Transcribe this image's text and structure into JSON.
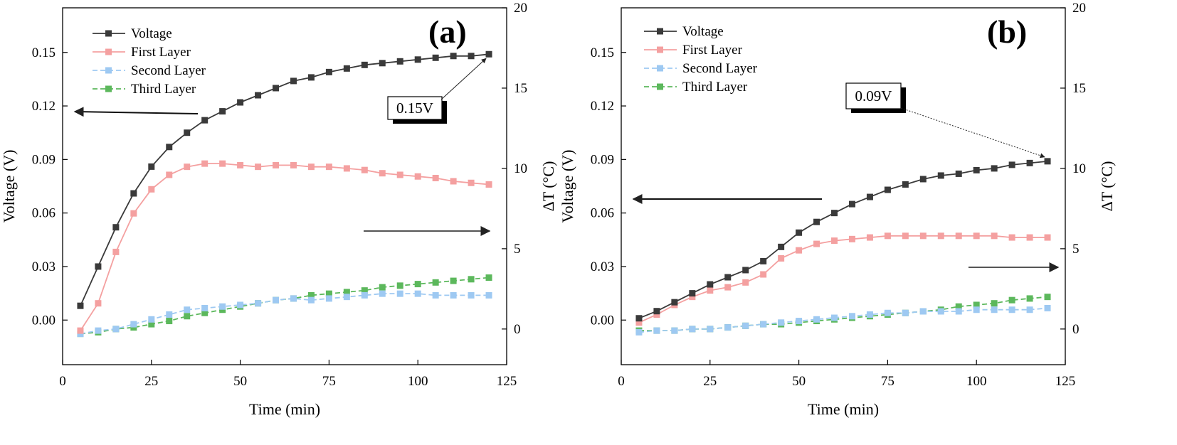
{
  "colors": {
    "voltage": "#3a3a3a",
    "first_layer": "#f4a0a0",
    "second_layer": "#9ec9f2",
    "third_layer": "#5cb85c"
  },
  "chart_data": [
    {
      "type": "line",
      "panel_label": "(a)",
      "xlabel": "Time (min)",
      "ylabel_left": "Voltage (V)",
      "ylabel_right": "ΔT (°C)",
      "xlim": [
        0,
        125
      ],
      "ylim_left": [
        -0.025,
        0.175
      ],
      "ylim_right": [
        -2.22,
        20
      ],
      "x_ticks": [
        "0",
        "25",
        "50",
        "75",
        "100",
        "125"
      ],
      "y_left_ticks": [
        "0.00",
        "0.03",
        "0.06",
        "0.09",
        "0.12",
        "0.15"
      ],
      "y_right_ticks": [
        "0",
        "5",
        "10",
        "15",
        "20"
      ],
      "legend_position": "top-left",
      "x": [
        5,
        10,
        15,
        20,
        25,
        30,
        35,
        40,
        45,
        50,
        55,
        60,
        65,
        70,
        75,
        80,
        85,
        90,
        95,
        100,
        105,
        110,
        115,
        120
      ],
      "series": [
        {
          "name": "Voltage",
          "axis": "left",
          "style": "solid",
          "color": "#3a3a3a",
          "values": [
            0.008,
            0.03,
            0.052,
            0.071,
            0.086,
            0.097,
            0.105,
            0.112,
            0.117,
            0.122,
            0.126,
            0.13,
            0.134,
            0.136,
            0.139,
            0.141,
            0.143,
            0.144,
            0.145,
            0.146,
            0.147,
            0.148,
            0.148,
            0.149
          ]
        },
        {
          "name": "First Layer",
          "axis": "right",
          "style": "solid",
          "color": "#f4a0a0",
          "values": [
            -0.1,
            1.6,
            4.8,
            7.2,
            8.7,
            9.6,
            10.1,
            10.3,
            10.3,
            10.2,
            10.1,
            10.2,
            10.2,
            10.1,
            10.1,
            10.0,
            9.9,
            9.7,
            9.6,
            9.5,
            9.4,
            9.2,
            9.1,
            9.0
          ]
        },
        {
          "name": "Second Layer",
          "axis": "right",
          "style": "dashed",
          "color": "#9ec9f2",
          "values": [
            -0.3,
            -0.1,
            0.0,
            0.3,
            0.6,
            0.9,
            1.2,
            1.3,
            1.4,
            1.5,
            1.6,
            1.8,
            1.9,
            1.8,
            1.9,
            2.0,
            2.1,
            2.2,
            2.2,
            2.2,
            2.1,
            2.1,
            2.1,
            2.1
          ]
        },
        {
          "name": "Third Layer",
          "axis": "right",
          "style": "dashed",
          "color": "#5cb85c",
          "values": [
            -0.3,
            -0.2,
            0.0,
            0.1,
            0.3,
            0.5,
            0.8,
            1.0,
            1.2,
            1.4,
            1.6,
            1.8,
            1.9,
            2.1,
            2.2,
            2.3,
            2.4,
            2.6,
            2.7,
            2.8,
            2.9,
            3.0,
            3.1,
            3.2
          ]
        }
      ],
      "annotation": {
        "text": "0.15V",
        "x": 120,
        "y": 0.149
      }
    },
    {
      "type": "line",
      "panel_label": "(b)",
      "xlabel": "Time (min)",
      "ylabel_left": "Voltage (V)",
      "ylabel_right": "ΔT (°C)",
      "xlim": [
        0,
        125
      ],
      "ylim_left": [
        -0.025,
        0.175
      ],
      "ylim_right": [
        -2.22,
        20
      ],
      "x_ticks": [
        "0",
        "25",
        "50",
        "75",
        "100",
        "125"
      ],
      "y_left_ticks": [
        "0.00",
        "0.03",
        "0.06",
        "0.09",
        "0.12",
        "0.15"
      ],
      "y_right_ticks": [
        "0",
        "5",
        "10",
        "15",
        "20"
      ],
      "legend_position": "top-left",
      "x": [
        5,
        10,
        15,
        20,
        25,
        30,
        35,
        40,
        45,
        50,
        55,
        60,
        65,
        70,
        75,
        80,
        85,
        90,
        95,
        100,
        105,
        110,
        115,
        120
      ],
      "series": [
        {
          "name": "Voltage",
          "axis": "left",
          "style": "solid",
          "color": "#3a3a3a",
          "values": [
            0.001,
            0.005,
            0.01,
            0.015,
            0.02,
            0.024,
            0.028,
            0.033,
            0.041,
            0.049,
            0.055,
            0.06,
            0.065,
            0.069,
            0.073,
            0.076,
            0.079,
            0.081,
            0.082,
            0.084,
            0.085,
            0.087,
            0.088,
            0.089
          ]
        },
        {
          "name": "First Layer",
          "axis": "right",
          "style": "solid",
          "color": "#f4a0a0",
          "values": [
            0.4,
            0.9,
            1.5,
            2.0,
            2.4,
            2.6,
            2.9,
            3.4,
            4.4,
            4.9,
            5.3,
            5.5,
            5.6,
            5.7,
            5.8,
            5.8,
            5.8,
            5.8,
            5.8,
            5.8,
            5.8,
            5.7,
            5.7,
            5.7
          ]
        },
        {
          "name": "Second Layer",
          "axis": "right",
          "style": "dashed",
          "color": "#9ec9f2",
          "values": [
            -0.2,
            -0.1,
            -0.1,
            0.0,
            0.0,
            0.1,
            0.2,
            0.3,
            0.4,
            0.5,
            0.6,
            0.7,
            0.8,
            0.9,
            1.0,
            1.0,
            1.1,
            1.1,
            1.1,
            1.2,
            1.2,
            1.2,
            1.2,
            1.3
          ]
        },
        {
          "name": "Third Layer",
          "axis": "right",
          "style": "dashed",
          "color": "#5cb85c",
          "values": [
            -0.1,
            -0.1,
            -0.1,
            0.0,
            0.0,
            0.1,
            0.2,
            0.3,
            0.3,
            0.4,
            0.5,
            0.6,
            0.7,
            0.8,
            0.9,
            1.0,
            1.1,
            1.2,
            1.4,
            1.5,
            1.6,
            1.8,
            1.9,
            2.0
          ]
        }
      ],
      "annotation": {
        "text": "0.09V",
        "x": 120,
        "y": 0.089
      }
    }
  ]
}
